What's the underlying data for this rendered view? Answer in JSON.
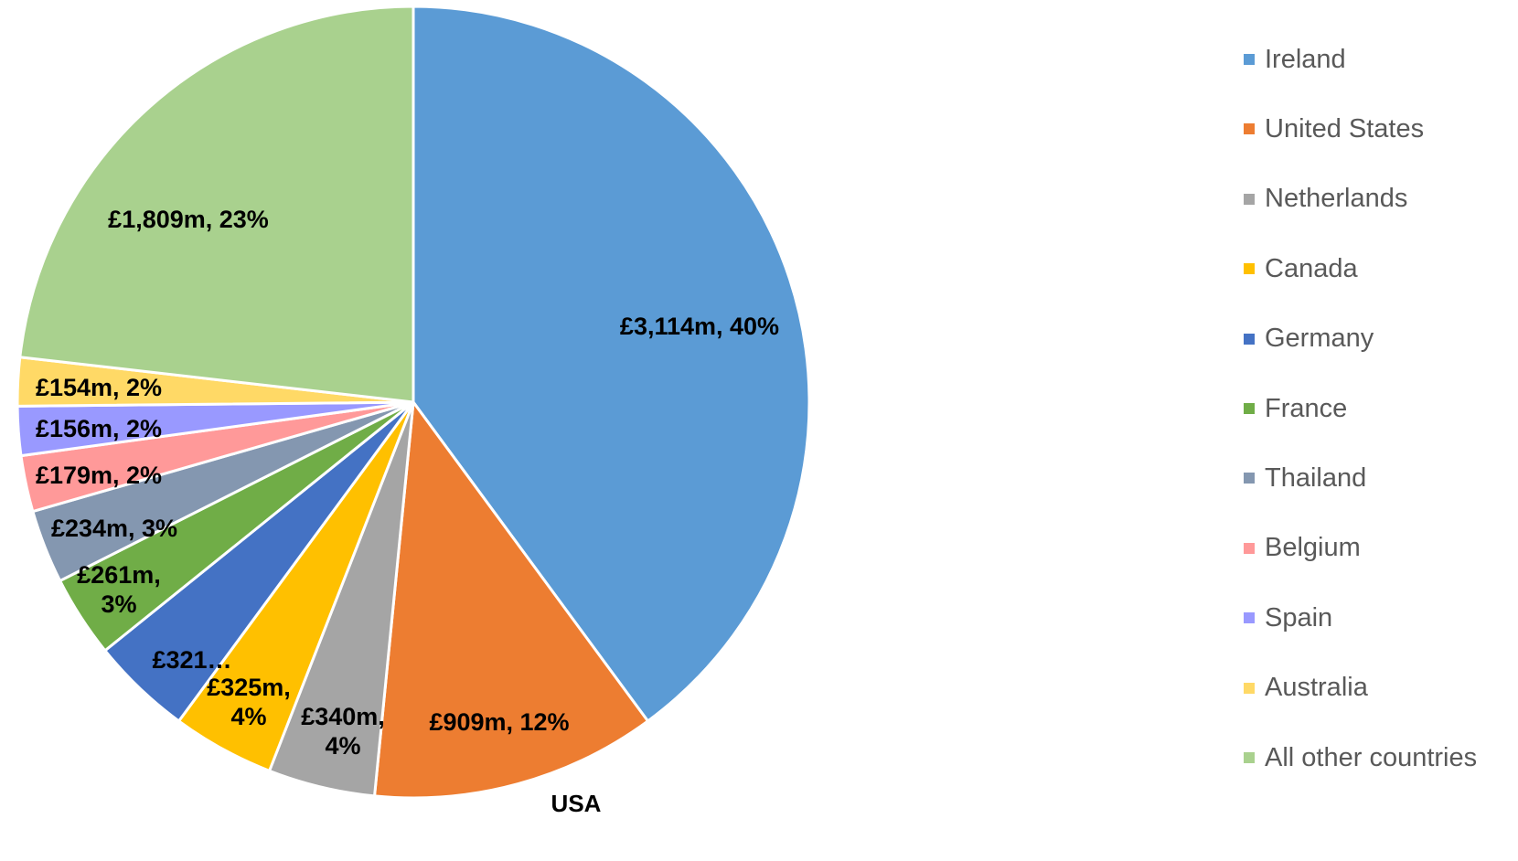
{
  "chart_data": {
    "type": "pie",
    "title": "",
    "start_angle_deg": 0,
    "direction": "clockwise",
    "slices": [
      {
        "name": "Ireland",
        "value": 3114,
        "percent": 40,
        "label": "£3,114m,  40%",
        "color": "#5B9BD5"
      },
      {
        "name": "United States",
        "value": 909,
        "percent": 12,
        "label": "£909m,  12%",
        "color": "#ED7D31"
      },
      {
        "name": "Netherlands",
        "value": 340,
        "percent": 4,
        "label": "£340m,\n4%",
        "color": "#A5A5A5"
      },
      {
        "name": "Canada",
        "value": 325,
        "percent": 4,
        "label": "£325m,\n4%",
        "color": "#FFC000"
      },
      {
        "name": "Germany",
        "value": 321,
        "percent": 4,
        "label": "£321…",
        "color": "#4472C4"
      },
      {
        "name": "France",
        "value": 261,
        "percent": 3,
        "label": "£261m,\n3%",
        "color": "#70AD47"
      },
      {
        "name": "Thailand",
        "value": 234,
        "percent": 3,
        "label": "£234m,  3%",
        "color": "#8497B0"
      },
      {
        "name": "Belgium",
        "value": 179,
        "percent": 2,
        "label": "£179m,  2%",
        "color": "#FF9999"
      },
      {
        "name": "Spain",
        "value": 156,
        "percent": 2,
        "label": "£156m,  2%",
        "color": "#9999FF"
      },
      {
        "name": "Australia",
        "value": 154,
        "percent": 2,
        "label": "£154m,  2%",
        "color": "#FFD966"
      },
      {
        "name": "All other countries",
        "value": 1809,
        "percent": 23,
        "label": "£1,809m,  23%",
        "color": "#A9D18E"
      }
    ],
    "annotations": [
      "USA"
    ],
    "legend_position": "right"
  }
}
